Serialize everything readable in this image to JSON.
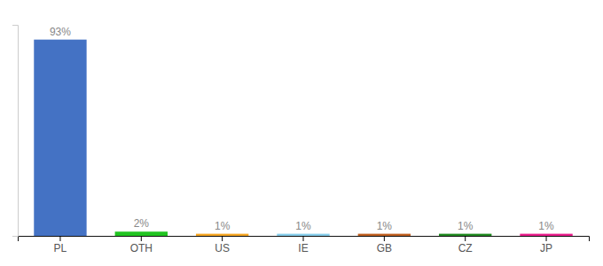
{
  "chart_data": {
    "type": "bar",
    "categories": [
      "PL",
      "OTH",
      "US",
      "IE",
      "GB",
      "CZ",
      "JP"
    ],
    "values": [
      93,
      2,
      1,
      1,
      1,
      1,
      1
    ],
    "value_labels": [
      "93%",
      "2%",
      "1%",
      "1%",
      "1%",
      "1%",
      "1%"
    ],
    "colors": [
      "#4472c4",
      "#21c421",
      "#f5a623",
      "#87ceeb",
      "#c06020",
      "#228b22",
      "#e91e8c"
    ],
    "ylim": [
      0,
      100
    ],
    "data_labels": true,
    "tick_labels": "x",
    "grid": false
  }
}
